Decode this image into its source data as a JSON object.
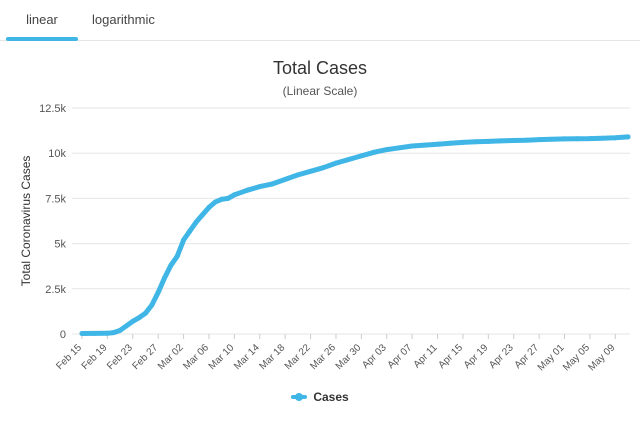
{
  "tabs": [
    {
      "label": "linear",
      "active": true
    },
    {
      "label": "logarithmic",
      "active": false
    }
  ],
  "colors": {
    "accent": "#40b6e6",
    "series": "#40b6e6",
    "grid": "#e6e6e6"
  },
  "chart_data": {
    "type": "line",
    "title": "Total Cases",
    "subtitle": "(Linear Scale)",
    "xlabel": "",
    "ylabel": "Total Coronavirus Cases",
    "ylim": [
      0,
      12500
    ],
    "y_ticks": [
      0,
      2500,
      5000,
      7500,
      10000,
      12500
    ],
    "y_tick_labels": [
      "0",
      "2.5k",
      "5k",
      "7.5k",
      "10k",
      "12.5k"
    ],
    "x_tick_labels": [
      "Feb 15",
      "Feb 19",
      "Feb 23",
      "Feb 27",
      "Mar 02",
      "Mar 06",
      "Mar 10",
      "Mar 14",
      "Mar 18",
      "Mar 22",
      "Mar 26",
      "Mar 30",
      "Apr 03",
      "Apr 07",
      "Apr 11",
      "Apr 15",
      "Apr 19",
      "Apr 23",
      "Apr 27",
      "May 01",
      "May 05",
      "May 09"
    ],
    "grid": true,
    "legend": "bottom-center",
    "series": [
      {
        "name": "Cases",
        "x": [
          "Feb 15",
          "Feb 17",
          "Feb 19",
          "Feb 20",
          "Feb 21",
          "Feb 22",
          "Feb 23",
          "Feb 24",
          "Feb 25",
          "Feb 26",
          "Feb 27",
          "Feb 28",
          "Feb 29",
          "Mar 01",
          "Mar 02",
          "Mar 03",
          "Mar 04",
          "Mar 05",
          "Mar 06",
          "Mar 07",
          "Mar 08",
          "Mar 09",
          "Mar 10",
          "Mar 12",
          "Mar 14",
          "Mar 16",
          "Mar 18",
          "Mar 20",
          "Mar 22",
          "Mar 24",
          "Mar 26",
          "Mar 28",
          "Mar 30",
          "Apr 01",
          "Apr 03",
          "Apr 05",
          "Apr 07",
          "Apr 09",
          "Apr 11",
          "Apr 13",
          "Apr 15",
          "Apr 17",
          "Apr 19",
          "Apr 21",
          "Apr 23",
          "Apr 25",
          "Apr 27",
          "Apr 29",
          "May 01",
          "May 03",
          "May 05",
          "May 07",
          "May 09",
          "May 11"
        ],
        "values": [
          30,
          31,
          40,
          80,
          200,
          450,
          700,
          900,
          1150,
          1600,
          2300,
          3100,
          3800,
          4300,
          5200,
          5700,
          6200,
          6600,
          7000,
          7300,
          7450,
          7500,
          7700,
          7950,
          8150,
          8300,
          8550,
          8800,
          9000,
          9200,
          9450,
          9650,
          9850,
          10050,
          10200,
          10300,
          10400,
          10450,
          10500,
          10550,
          10600,
          10630,
          10650,
          10680,
          10700,
          10720,
          10750,
          10770,
          10790,
          10800,
          10810,
          10830,
          10850,
          10900
        ]
      }
    ]
  }
}
